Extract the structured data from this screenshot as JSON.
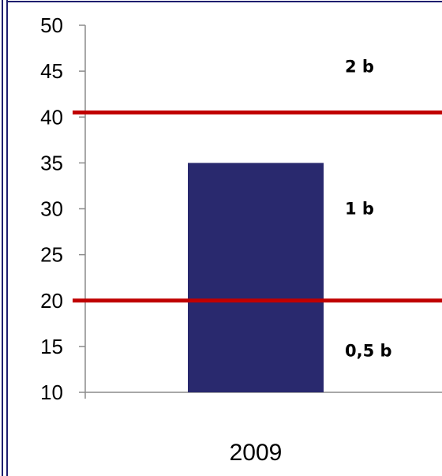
{
  "chart_data": {
    "type": "bar",
    "categories": [
      "2009"
    ],
    "values": [
      35
    ],
    "ylim": [
      10,
      50
    ],
    "yticks": [
      10,
      15,
      20,
      25,
      30,
      35,
      40,
      45,
      50
    ],
    "grid": false,
    "legend": "none",
    "reference_lines": [
      {
        "y": 40.5
      },
      {
        "y": 20.0
      }
    ],
    "annotations": [
      {
        "text": "2 b",
        "y": 45.5
      },
      {
        "text": "1 b",
        "y": 30.0
      },
      {
        "text": "0,5 b",
        "y": 14.5
      }
    ],
    "colors": {
      "bar": "#29296E",
      "reference_line": "#C00000",
      "axis": "#8C8C8C",
      "frame": "#1E1E6E"
    }
  }
}
